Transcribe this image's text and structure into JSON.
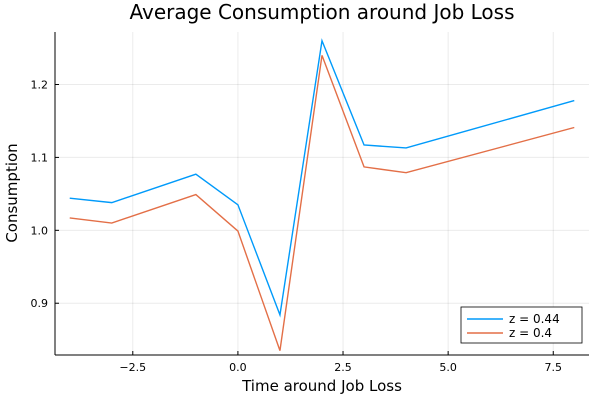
{
  "chart_data": {
    "type": "line",
    "title": "Average Consumption around Job Loss",
    "xlabel": "Time around Job Loss",
    "ylabel": "Consumption",
    "x": [
      -4,
      -3,
      -1,
      0,
      1,
      2,
      3,
      4,
      8
    ],
    "series": [
      {
        "name": "z = 0.44",
        "color": "#009AFA",
        "values": [
          1.044,
          1.038,
          1.077,
          1.035,
          0.884,
          1.26,
          1.117,
          1.113,
          1.178
        ]
      },
      {
        "name": "z = 0.4",
        "color": "#E36F47",
        "values": [
          1.017,
          1.01,
          1.049,
          0.999,
          0.835,
          1.24,
          1.087,
          1.079,
          1.141
        ]
      }
    ],
    "xlim": [
      -4.35,
      8.35
    ],
    "ylim": [
      0.829,
      1.272
    ],
    "xticks": [
      -2.5,
      0.0,
      2.5,
      5.0,
      7.5
    ],
    "xtick_labels": [
      "−2.5",
      "0.0",
      "2.5",
      "5.0",
      "7.5"
    ],
    "yticks": [
      0.9,
      1.0,
      1.1,
      1.2
    ],
    "ytick_labels": [
      "0.9",
      "1.0",
      "1.1",
      "1.2"
    ],
    "grid": true,
    "legend_position": "bottom-right"
  }
}
